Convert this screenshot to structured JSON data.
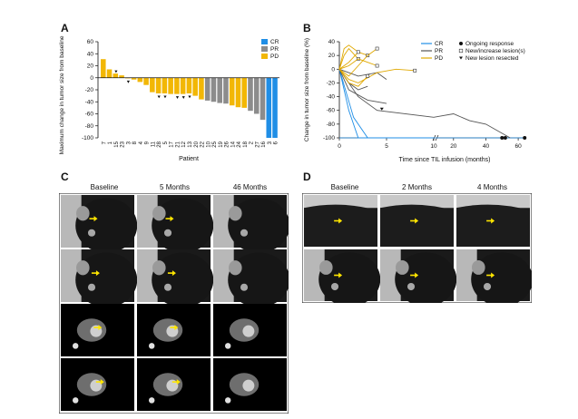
{
  "panels": {
    "a": "A",
    "b": "B",
    "c": "C",
    "d": "D"
  },
  "panel_a": {
    "chart_data": {
      "type": "bar",
      "ylabel": "Maximum change in tumor size from baseline (%)",
      "xlabel": "Patient",
      "ylim": [
        -100,
        60
      ],
      "yticks": [
        60,
        40,
        20,
        0,
        -20,
        -40,
        -60,
        -80,
        -100
      ],
      "legend": [
        {
          "label": "CR",
          "color": "#1f8ee6"
        },
        {
          "label": "PR",
          "color": "#8c8c8c"
        },
        {
          "label": "PD",
          "color": "#f2b705"
        }
      ],
      "categories": [
        "7",
        "1",
        "15",
        "23",
        "3",
        "8",
        "4",
        "9",
        "11",
        "28",
        "5",
        "17",
        "21",
        "12",
        "13",
        "20",
        "22",
        "10",
        "25",
        "19",
        "26",
        "14",
        "24",
        "18",
        "2",
        "27",
        "16",
        "3",
        "6"
      ],
      "values": [
        31,
        14,
        7,
        4,
        -1,
        -3,
        -7,
        -12,
        -24,
        -26,
        -26,
        -27,
        -27,
        -27,
        -26,
        -30,
        -36,
        -38,
        -40,
        -42,
        -43,
        -46,
        -49,
        -50,
        -55,
        -60,
        -70,
        -100,
        -100
      ],
      "status": [
        "PD",
        "PD",
        "PD",
        "PD",
        "PD",
        "PD",
        "PD",
        "PD",
        "PD",
        "PD",
        "PD",
        "PD",
        "PD",
        "PD",
        "PD",
        "PD",
        "PD",
        "PR",
        "PR",
        "PR",
        "PR",
        "PD",
        "PD",
        "PD",
        "PR",
        "PR",
        "PR",
        "CR",
        "CR"
      ],
      "new_lesion": [
        false,
        false,
        true,
        false,
        true,
        false,
        false,
        false,
        false,
        true,
        true,
        false,
        true,
        true,
        true,
        false,
        false,
        false,
        false,
        false,
        false,
        false,
        false,
        false,
        false,
        false,
        false,
        false,
        false
      ]
    }
  },
  "panel_b": {
    "chart_data": {
      "type": "line",
      "ylabel": "Change in tumor size from baseline (%)",
      "xlabel": "Time since TIL infusion (months)",
      "ylim": [
        -100,
        40
      ],
      "yticks": [
        40,
        20,
        0,
        -20,
        -40,
        -60,
        -80,
        -100
      ],
      "xticks_left": [
        0,
        5,
        10
      ],
      "xticks_right": [
        20,
        40,
        60
      ],
      "legend_lines": [
        {
          "label": "CR",
          "color": "#1f8ee6"
        },
        {
          "label": "PR",
          "color": "#555555"
        },
        {
          "label": "PD",
          "color": "#e0a800"
        }
      ],
      "legend_symbols": [
        {
          "label": "Ongoing response",
          "symbol": "circle"
        },
        {
          "label": "New/increase lesion(s)",
          "symbol": "square"
        },
        {
          "label": "New lesion resected",
          "symbol": "triangle"
        }
      ],
      "series": [
        {
          "status": "CR",
          "x": [
            0,
            1,
            2,
            10
          ],
          "y": [
            0,
            -60,
            -100,
            -100
          ]
        },
        {
          "status": "CR",
          "x": [
            0,
            1.5,
            3,
            10
          ],
          "y": [
            0,
            -70,
            -100,
            -100
          ]
        },
        {
          "status": "PR",
          "x": [
            0,
            2,
            4,
            10,
            20,
            30,
            40,
            55
          ],
          "y": [
            0,
            -40,
            -60,
            -70,
            -65,
            -75,
            -80,
            -100
          ]
        },
        {
          "status": "PR",
          "x": [
            0,
            1,
            2,
            3
          ],
          "y": [
            0,
            -20,
            -30,
            -25
          ]
        },
        {
          "status": "PR",
          "x": [
            0,
            1,
            3,
            5
          ],
          "y": [
            0,
            -30,
            -45,
            -50
          ]
        },
        {
          "status": "PR",
          "x": [
            0,
            2,
            4,
            5
          ],
          "y": [
            0,
            -10,
            -5,
            -15
          ]
        },
        {
          "status": "PD",
          "x": [
            0,
            0.5,
            1,
            2
          ],
          "y": [
            0,
            20,
            30,
            15
          ]
        },
        {
          "status": "PD",
          "x": [
            0,
            1,
            2,
            3
          ],
          "y": [
            0,
            10,
            25,
            20
          ]
        },
        {
          "status": "PD",
          "x": [
            0,
            1,
            2,
            3,
            4
          ],
          "y": [
            0,
            -10,
            5,
            20,
            30
          ]
        },
        {
          "status": "PD",
          "x": [
            0,
            1,
            2,
            4,
            6,
            8
          ],
          "y": [
            0,
            -15,
            -20,
            -5,
            0,
            -2
          ]
        },
        {
          "status": "PD",
          "x": [
            0,
            1,
            2,
            3
          ],
          "y": [
            0,
            -20,
            -25,
            -10
          ]
        },
        {
          "status": "PD",
          "x": [
            0,
            0.5,
            1,
            2
          ],
          "y": [
            0,
            30,
            35,
            25
          ]
        },
        {
          "status": "PD",
          "x": [
            0,
            1,
            2,
            3,
            4
          ],
          "y": [
            0,
            5,
            15,
            10,
            5
          ]
        }
      ]
    }
  },
  "panel_c": {
    "columns": [
      "Baseline",
      "5 Months",
      "46 Months"
    ]
  },
  "panel_d": {
    "columns": [
      "Baseline",
      "2 Months",
      "4 Months"
    ]
  }
}
